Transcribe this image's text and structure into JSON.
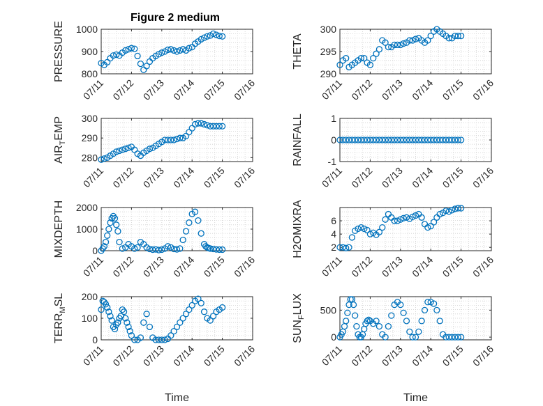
{
  "figure": {
    "title": "Figure 2 medium"
  },
  "chart_data": [
    {
      "type": "scatter",
      "ylabel": "PRESSURE",
      "xlabel": "",
      "xticks": [
        "07/11",
        "07/12",
        "07/13",
        "07/14",
        "07/15",
        "07/16"
      ],
      "xlim": [
        0,
        5
      ],
      "ylim": [
        800,
        1000
      ],
      "yticks": [
        "800",
        "900",
        "1000"
      ],
      "x": [
        0.0,
        0.1,
        0.2,
        0.3,
        0.4,
        0.5,
        0.6,
        0.7,
        0.8,
        0.9,
        1.0,
        1.1,
        1.2,
        1.3,
        1.4,
        1.5,
        1.6,
        1.7,
        1.8,
        1.9,
        2.0,
        2.1,
        2.2,
        2.3,
        2.4,
        2.5,
        2.6,
        2.7,
        2.8,
        2.9,
        3.0,
        3.1,
        3.2,
        3.3,
        3.4,
        3.5,
        3.6,
        3.7,
        3.8,
        3.9,
        4.0
      ],
      "y": [
        848,
        840,
        852,
        870,
        882,
        886,
        882,
        895,
        905,
        910,
        915,
        912,
        880,
        845,
        818,
        835,
        855,
        870,
        880,
        888,
        895,
        900,
        908,
        910,
        905,
        900,
        905,
        910,
        905,
        915,
        920,
        935,
        945,
        955,
        962,
        968,
        972,
        980,
        975,
        970,
        968
      ]
    },
    {
      "type": "scatter",
      "ylabel": "THETA",
      "xlabel": "",
      "xticks": [
        "07/11",
        "07/12",
        "07/13",
        "07/14",
        "07/15",
        "07/16"
      ],
      "xlim": [
        0,
        5
      ],
      "ylim": [
        290,
        300
      ],
      "yticks": [
        "290",
        "295",
        "300"
      ],
      "x": [
        0.0,
        0.1,
        0.2,
        0.3,
        0.4,
        0.5,
        0.6,
        0.7,
        0.8,
        0.9,
        1.0,
        1.1,
        1.2,
        1.3,
        1.4,
        1.5,
        1.6,
        1.7,
        1.8,
        1.9,
        2.0,
        2.1,
        2.2,
        2.3,
        2.4,
        2.5,
        2.6,
        2.7,
        2.8,
        2.9,
        3.0,
        3.1,
        3.2,
        3.3,
        3.4,
        3.5,
        3.6,
        3.7,
        3.8,
        3.9,
        4.0
      ],
      "y": [
        292.0,
        293.0,
        293.5,
        291.5,
        292.0,
        292.5,
        293.0,
        293.5,
        293.5,
        292.5,
        292.0,
        293.5,
        294.5,
        295.5,
        297.5,
        297.0,
        296.0,
        296.0,
        296.5,
        296.5,
        296.5,
        296.8,
        297.0,
        297.5,
        297.5,
        297.8,
        298.0,
        297.5,
        297.0,
        297.5,
        298.5,
        299.5,
        300.0,
        299.5,
        299.0,
        298.5,
        298.0,
        298.0,
        298.5,
        298.5,
        298.5
      ]
    },
    {
      "type": "scatter",
      "ylabel": "AIR",
      "ylabel_sub": "T",
      "ylabel_tail": "EMP",
      "xlabel": "",
      "xticks": [
        "07/11",
        "07/12",
        "07/13",
        "07/14",
        "07/15",
        "07/16"
      ],
      "xlim": [
        0,
        5
      ],
      "ylim": [
        278,
        300
      ],
      "yticks": [
        "280",
        "290",
        "300"
      ],
      "x": [
        0.0,
        0.1,
        0.2,
        0.3,
        0.4,
        0.5,
        0.6,
        0.7,
        0.8,
        0.9,
        1.0,
        1.1,
        1.2,
        1.3,
        1.4,
        1.5,
        1.6,
        1.7,
        1.8,
        1.9,
        2.0,
        2.1,
        2.2,
        2.3,
        2.4,
        2.5,
        2.6,
        2.7,
        2.8,
        2.9,
        3.0,
        3.1,
        3.2,
        3.3,
        3.4,
        3.5,
        3.6,
        3.7,
        3.8,
        3.9,
        4.0
      ],
      "y": [
        279,
        279.5,
        280,
        281,
        282,
        283,
        283.5,
        284,
        284.5,
        285,
        285.5,
        284,
        282,
        281,
        282.5,
        283.5,
        284.5,
        285,
        286,
        287,
        288,
        289,
        289,
        289,
        289,
        289.5,
        290,
        290,
        291,
        293,
        295,
        297,
        297.5,
        297.5,
        297,
        296.5,
        296,
        296,
        296,
        296,
        296
      ]
    },
    {
      "type": "scatter",
      "ylabel": "RAINFALL",
      "xlabel": "",
      "xticks": [
        "07/11",
        "07/12",
        "07/13",
        "07/14",
        "07/15",
        "07/16"
      ],
      "xlim": [
        0,
        5
      ],
      "ylim": [
        -1,
        1
      ],
      "yticks": [
        "-1",
        "0",
        "1"
      ],
      "x": [
        0.0,
        0.1,
        0.2,
        0.3,
        0.4,
        0.5,
        0.6,
        0.7,
        0.8,
        0.9,
        1.0,
        1.1,
        1.2,
        1.3,
        1.4,
        1.5,
        1.6,
        1.7,
        1.8,
        1.9,
        2.0,
        2.1,
        2.2,
        2.3,
        2.4,
        2.5,
        2.6,
        2.7,
        2.8,
        2.9,
        3.0,
        3.1,
        3.2,
        3.3,
        3.4,
        3.5,
        3.6,
        3.7,
        3.8,
        3.9,
        4.0
      ],
      "y": [
        0,
        0,
        0,
        0,
        0,
        0,
        0,
        0,
        0,
        0,
        0,
        0,
        0,
        0,
        0,
        0,
        0,
        0,
        0,
        0,
        0,
        0,
        0,
        0,
        0,
        0,
        0,
        0,
        0,
        0,
        0,
        0,
        0,
        0,
        0,
        0,
        0,
        0,
        0,
        0,
        0
      ]
    },
    {
      "type": "scatter",
      "ylabel": "MIXDEPTH",
      "xlabel": "",
      "xticks": [
        "07/11",
        "07/12",
        "07/13",
        "07/14",
        "07/15",
        "07/16"
      ],
      "xlim": [
        0,
        5
      ],
      "ylim": [
        0,
        2000
      ],
      "yticks": [
        "0",
        "1000",
        "2000"
      ],
      "x": [
        0.0,
        0.05,
        0.1,
        0.15,
        0.2,
        0.25,
        0.3,
        0.35,
        0.4,
        0.45,
        0.5,
        0.55,
        0.6,
        0.7,
        0.8,
        0.9,
        1.0,
        1.1,
        1.2,
        1.3,
        1.4,
        1.5,
        1.6,
        1.7,
        1.8,
        1.9,
        2.0,
        2.1,
        2.2,
        2.3,
        2.4,
        2.5,
        2.6,
        2.7,
        2.8,
        2.9,
        3.0,
        3.1,
        3.2,
        3.3,
        3.4,
        3.45,
        3.5,
        3.55,
        3.6,
        3.7,
        3.8,
        3.9,
        4.0
      ],
      "y": [
        0,
        100,
        200,
        400,
        700,
        1000,
        1300,
        1500,
        1600,
        1500,
        1200,
        900,
        400,
        100,
        150,
        300,
        200,
        100,
        150,
        400,
        300,
        150,
        80,
        50,
        60,
        30,
        50,
        100,
        200,
        150,
        80,
        60,
        100,
        500,
        900,
        1300,
        1700,
        1800,
        1400,
        800,
        300,
        200,
        150,
        120,
        100,
        80,
        60,
        50,
        50
      ]
    },
    {
      "type": "scatter",
      "ylabel": "H2OMIXRA",
      "xlabel": "",
      "xticks": [
        "07/11",
        "07/12",
        "07/13",
        "07/14",
        "07/15",
        "07/16"
      ],
      "xlim": [
        0,
        5
      ],
      "ylim": [
        1.5,
        8
      ],
      "yticks": [
        "2",
        "4",
        "6"
      ],
      "x": [
        0.0,
        0.1,
        0.2,
        0.3,
        0.4,
        0.5,
        0.6,
        0.7,
        0.8,
        0.9,
        1.0,
        1.1,
        1.2,
        1.3,
        1.4,
        1.5,
        1.6,
        1.7,
        1.8,
        1.9,
        2.0,
        2.1,
        2.2,
        2.3,
        2.4,
        2.5,
        2.6,
        2.7,
        2.8,
        2.9,
        3.0,
        3.1,
        3.2,
        3.3,
        3.4,
        3.5,
        3.6,
        3.7,
        3.8,
        3.9,
        4.0
      ],
      "y": [
        2.0,
        2.0,
        1.9,
        2.0,
        3.5,
        4.5,
        4.8,
        5.0,
        4.8,
        4.6,
        4.0,
        4.2,
        3.9,
        4.3,
        5.0,
        6.2,
        7.0,
        6.5,
        6.0,
        6.0,
        6.2,
        6.4,
        6.5,
        6.3,
        6.6,
        6.8,
        7.0,
        6.5,
        5.5,
        5.0,
        5.2,
        5.8,
        6.5,
        7.0,
        7.2,
        7.5,
        7.4,
        7.6,
        7.8,
        7.9,
        7.9
      ]
    },
    {
      "type": "scatter",
      "ylabel": "TERR",
      "ylabel_sub": "M",
      "ylabel_tail": "SL",
      "xlabel": "Time",
      "xticks": [
        "07/11",
        "07/12",
        "07/13",
        "07/14",
        "07/15",
        "07/16"
      ],
      "xlim": [
        0,
        5
      ],
      "ylim": [
        0,
        200
      ],
      "yticks": [
        "0",
        "100",
        "200"
      ],
      "x": [
        0.0,
        0.05,
        0.1,
        0.15,
        0.2,
        0.25,
        0.3,
        0.35,
        0.4,
        0.45,
        0.5,
        0.55,
        0.6,
        0.65,
        0.7,
        0.75,
        0.8,
        0.85,
        0.9,
        0.95,
        1.0,
        1.1,
        1.2,
        1.3,
        1.4,
        1.5,
        1.6,
        1.7,
        1.8,
        1.9,
        2.0,
        2.1,
        2.2,
        2.3,
        2.4,
        2.5,
        2.6,
        2.7,
        2.8,
        2.9,
        3.0,
        3.1,
        3.2,
        3.3,
        3.4,
        3.5,
        3.6,
        3.7,
        3.8,
        3.9,
        4.0
      ],
      "y": [
        140,
        180,
        175,
        165,
        150,
        130,
        110,
        90,
        60,
        50,
        70,
        80,
        100,
        110,
        140,
        130,
        100,
        80,
        60,
        40,
        20,
        0,
        0,
        10,
        80,
        120,
        60,
        10,
        0,
        0,
        0,
        0,
        5,
        20,
        40,
        60,
        80,
        100,
        120,
        140,
        160,
        180,
        190,
        170,
        130,
        100,
        90,
        110,
        130,
        140,
        150
      ]
    },
    {
      "type": "scatter",
      "ylabel": "SUN",
      "ylabel_sub": "F",
      "ylabel_tail": "LUX",
      "xlabel": "Time",
      "xticks": [
        "07/11",
        "07/12",
        "07/13",
        "07/14",
        "07/15",
        "07/16"
      ],
      "xlim": [
        0,
        5
      ],
      "ylim": [
        -50,
        750
      ],
      "yticks": [
        "0",
        "500"
      ],
      "x": [
        0.0,
        0.05,
        0.1,
        0.15,
        0.2,
        0.25,
        0.3,
        0.35,
        0.4,
        0.45,
        0.5,
        0.55,
        0.6,
        0.65,
        0.7,
        0.75,
        0.8,
        0.85,
        0.9,
        0.95,
        1.0,
        1.1,
        1.2,
        1.3,
        1.4,
        1.5,
        1.6,
        1.7,
        1.8,
        1.9,
        2.0,
        2.1,
        2.2,
        2.3,
        2.4,
        2.5,
        2.6,
        2.7,
        2.8,
        2.9,
        3.0,
        3.1,
        3.2,
        3.3,
        3.4,
        3.5,
        3.6,
        3.7,
        3.8,
        3.9,
        4.0
      ],
      "y": [
        0,
        50,
        100,
        200,
        300,
        450,
        600,
        700,
        700,
        600,
        400,
        200,
        50,
        0,
        0,
        50,
        150,
        250,
        300,
        320,
        300,
        250,
        300,
        200,
        50,
        0,
        200,
        400,
        600,
        650,
        600,
        450,
        300,
        100,
        0,
        0,
        100,
        300,
        500,
        650,
        650,
        620,
        500,
        300,
        50,
        0,
        0,
        0,
        0,
        0,
        0
      ]
    }
  ]
}
